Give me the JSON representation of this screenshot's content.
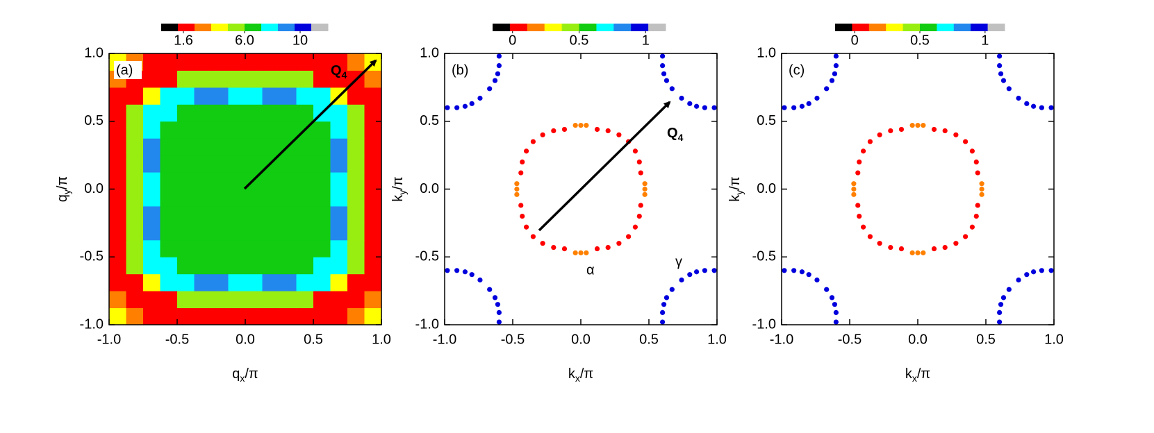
{
  "chart_data": [
    {
      "type": "heatmap",
      "panel_label": "(a)",
      "xlabel": [
        "q",
        "x",
        "/π"
      ],
      "ylabel": [
        "q",
        "y",
        "/π"
      ],
      "xlim": [
        -1,
        1
      ],
      "ylim": [
        -1,
        1
      ],
      "xticks": [
        {
          "value": -1,
          "label": "-1.0"
        },
        -0.5,
        {
          "value": 0,
          "label": "0.0"
        },
        0.5,
        {
          "value": 1,
          "label": "1.0"
        }
      ],
      "yticks": [
        {
          "value": -1,
          "label": "-1.0"
        },
        -0.5,
        {
          "value": 0,
          "label": "0.0"
        },
        0.5,
        {
          "value": 1,
          "label": "1.0"
        }
      ],
      "colors": [
        "#000000",
        "#ff0000",
        "#ff8000",
        "#ffff00",
        "#99ee11",
        "#11cc11",
        "#00ffff",
        "#2288ee",
        "#0000dd",
        "#c0c0c0"
      ],
      "zlim": [
        0,
        12
      ],
      "zticks": [
        1.6,
        {
          "value": 6,
          "label": "6.0"
        },
        10
      ],
      "arrow_label": [
        "Q",
        "4"
      ],
      "x": [
        -0.9375,
        -0.8125,
        -0.6875,
        -0.5625,
        -0.4375,
        -0.3125,
        -0.1875,
        -0.0625,
        0.0625,
        0.1875,
        0.3125,
        0.4375,
        0.5625,
        0.6875,
        0.8125,
        0.9375
      ],
      "y": [
        -0.9375,
        -0.8125,
        -0.6875,
        -0.5625,
        -0.4375,
        -0.3125,
        -0.1875,
        -0.0625,
        0.0625,
        0.1875,
        0.3125,
        0.4375,
        0.5625,
        0.6875,
        0.8125,
        0.9375
      ],
      "z": [
        [
          4.2,
          3.0,
          1.8,
          1.8,
          1.8,
          1.8,
          1.8,
          1.8,
          1.8,
          1.8,
          1.8,
          1.8,
          1.8,
          1.8,
          3.0,
          4.2
        ],
        [
          3.0,
          1.8,
          1.8,
          1.8,
          5.4,
          5.4,
          5.4,
          5.4,
          5.4,
          5.4,
          5.4,
          5.4,
          1.8,
          1.8,
          1.8,
          3.0
        ],
        [
          1.8,
          1.8,
          4.2,
          7.8,
          7.8,
          9,
          9,
          7.8,
          7.8,
          9,
          9,
          7.8,
          7.8,
          4.2,
          1.8,
          1.8
        ],
        [
          1.8,
          5.4,
          7.8,
          7.8,
          6.6,
          6.6,
          6.6,
          6.6,
          6.6,
          6.6,
          6.6,
          6.6,
          7.8,
          7.8,
          5.4,
          1.8
        ],
        [
          1.8,
          5.4,
          7.8,
          6.6,
          6.6,
          6.6,
          6.6,
          6.6,
          6.6,
          6.6,
          6.6,
          6.6,
          6.6,
          7.8,
          5.4,
          1.8
        ],
        [
          1.8,
          5.4,
          9,
          6.6,
          6.6,
          6.6,
          6.6,
          6.6,
          6.6,
          6.6,
          6.6,
          6.6,
          6.6,
          9,
          5.4,
          1.8
        ],
        [
          1.8,
          5.4,
          9,
          6.6,
          6.6,
          6.6,
          6.6,
          6.6,
          6.6,
          6.6,
          6.6,
          6.6,
          6.6,
          9,
          5.4,
          1.8
        ],
        [
          1.8,
          5.4,
          7.8,
          6.6,
          6.6,
          6.6,
          6.6,
          6.6,
          6.6,
          6.6,
          6.6,
          6.6,
          6.6,
          7.8,
          5.4,
          1.8
        ],
        [
          1.8,
          5.4,
          7.8,
          6.6,
          6.6,
          6.6,
          6.6,
          6.6,
          6.6,
          6.6,
          6.6,
          6.6,
          6.6,
          7.8,
          5.4,
          1.8
        ],
        [
          1.8,
          5.4,
          9,
          6.6,
          6.6,
          6.6,
          6.6,
          6.6,
          6.6,
          6.6,
          6.6,
          6.6,
          6.6,
          9,
          5.4,
          1.8
        ],
        [
          1.8,
          5.4,
          9,
          6.6,
          6.6,
          6.6,
          6.6,
          6.6,
          6.6,
          6.6,
          6.6,
          6.6,
          6.6,
          9,
          5.4,
          1.8
        ],
        [
          1.8,
          5.4,
          7.8,
          6.6,
          6.6,
          6.6,
          6.6,
          6.6,
          6.6,
          6.6,
          6.6,
          6.6,
          6.6,
          7.8,
          5.4,
          1.8
        ],
        [
          1.8,
          5.4,
          7.8,
          7.8,
          6.6,
          6.6,
          6.6,
          6.6,
          6.6,
          6.6,
          6.6,
          6.6,
          7.8,
          7.8,
          5.4,
          1.8
        ],
        [
          1.8,
          1.8,
          4.2,
          7.8,
          7.8,
          9,
          9,
          7.8,
          7.8,
          9,
          9,
          7.8,
          7.8,
          4.2,
          1.8,
          1.8
        ],
        [
          3.0,
          1.8,
          1.8,
          1.8,
          5.4,
          5.4,
          5.4,
          5.4,
          5.4,
          5.4,
          5.4,
          5.4,
          1.8,
          1.8,
          1.8,
          3.0
        ],
        [
          4.2,
          3.0,
          1.8,
          1.8,
          1.8,
          1.8,
          1.8,
          1.8,
          1.8,
          1.8,
          1.8,
          1.8,
          1.8,
          1.8,
          3.0,
          4.2
        ]
      ]
    },
    {
      "type": "scatter",
      "panel_label": "(b)",
      "xlabel": [
        "k",
        "x",
        "/π"
      ],
      "ylabel": [
        "k",
        "y",
        "/π"
      ],
      "xlim": [
        -1,
        1
      ],
      "ylim": [
        -1,
        1
      ],
      "xticks": [
        {
          "value": -1,
          "label": "-1.0"
        },
        -0.5,
        {
          "value": 0,
          "label": "0.0"
        },
        0.5,
        {
          "value": 1,
          "label": "1.0"
        }
      ],
      "yticks": [
        {
          "value": -1,
          "label": "-1.0"
        },
        -0.5,
        {
          "value": 0,
          "label": "0.0"
        },
        0.5,
        {
          "value": 1,
          "label": "1.0"
        }
      ],
      "colors": [
        "#000000",
        "#ff0000",
        "#ff8000",
        "#ffff00",
        "#99ee11",
        "#11cc11",
        "#00ffff",
        "#2288ee",
        "#0000dd",
        "#c0c0c0"
      ],
      "zlim": [
        -0.15,
        1.15
      ],
      "zticks": [
        0,
        0.5,
        1
      ],
      "arrow_label": [
        "Q",
        "4"
      ],
      "alpha_label": "α",
      "gamma_label": "γ",
      "x": [
        0.12,
        0.2,
        0.28,
        0.35,
        0.4,
        0.43,
        0.44,
        -0.12,
        -0.2,
        -0.28,
        -0.35,
        -0.4,
        -0.43,
        -0.44,
        -0.12,
        -0.2,
        -0.28,
        -0.35,
        -0.4,
        -0.43,
        -0.44,
        0.12,
        0.2,
        0.28,
        0.35,
        0.4,
        0.43,
        0.44,
        -0.04,
        0,
        0.04,
        -0.04,
        0,
        0.04,
        -0.47,
        -0.47,
        -0.47,
        0.47,
        0.47,
        0.47,
        0.6,
        0.6,
        0.61,
        0.63,
        0.67,
        0.74,
        0.8,
        0.85,
        0.91,
        0.98,
        -0.6,
        -0.6,
        -0.61,
        -0.63,
        -0.67,
        -0.74,
        -0.8,
        -0.85,
        -0.91,
        -0.98,
        -0.6,
        -0.6,
        -0.61,
        -0.63,
        -0.67,
        -0.74,
        -0.8,
        -0.85,
        -0.91,
        -0.98,
        0.6,
        0.6,
        0.61,
        0.63,
        0.67,
        0.74,
        0.8,
        0.85,
        0.91,
        0.98
      ],
      "y": [
        0.44,
        0.43,
        0.4,
        0.35,
        0.28,
        0.2,
        0.12,
        0.44,
        0.43,
        0.4,
        0.35,
        0.28,
        0.2,
        0.12,
        -0.44,
        -0.43,
        -0.4,
        -0.35,
        -0.28,
        -0.2,
        -0.12,
        -0.44,
        -0.43,
        -0.4,
        -0.35,
        -0.28,
        -0.2,
        -0.12,
        0.47,
        0.47,
        0.47,
        -0.47,
        -0.47,
        -0.47,
        -0.04,
        0,
        0.04,
        -0.04,
        0,
        0.04,
        0.98,
        0.91,
        0.85,
        0.8,
        0.74,
        0.67,
        0.63,
        0.61,
        0.6,
        0.6,
        0.98,
        0.91,
        0.85,
        0.8,
        0.74,
        0.67,
        0.63,
        0.61,
        0.6,
        0.6,
        -0.98,
        -0.91,
        -0.85,
        -0.8,
        -0.74,
        -0.67,
        -0.63,
        -0.61,
        -0.6,
        -0.6,
        -0.98,
        -0.91,
        -0.85,
        -0.8,
        -0.74,
        -0.67,
        -0.63,
        -0.61,
        -0.6,
        -0.6
      ],
      "values": [
        0.05,
        0.05,
        0.05,
        0.05,
        0.05,
        0.05,
        0.05,
        0.05,
        0.05,
        0.05,
        0.05,
        0.05,
        0.05,
        0.05,
        0.05,
        0.05,
        0.05,
        0.05,
        0.05,
        0.05,
        0.05,
        0.05,
        0.05,
        0.05,
        0.05,
        0.05,
        0.05,
        0.05,
        0.18,
        0.18,
        0.18,
        0.18,
        0.18,
        0.18,
        0.18,
        0.18,
        0.18,
        0.18,
        0.18,
        0.18,
        0.95,
        0.95,
        0.95,
        0.95,
        0.95,
        0.95,
        0.95,
        0.95,
        0.95,
        0.95,
        0.95,
        0.95,
        0.95,
        0.95,
        0.95,
        0.95,
        0.95,
        0.95,
        0.95,
        0.95,
        0.95,
        0.95,
        0.95,
        0.95,
        0.95,
        0.95,
        0.95,
        0.95,
        0.95,
        0.95,
        0.95,
        0.95,
        0.95,
        0.95,
        0.95,
        0.95,
        0.95,
        0.95,
        0.95,
        0.95
      ]
    },
    {
      "type": "scatter",
      "panel_label": "(c)",
      "xlabel": [
        "k",
        "x",
        "/π"
      ],
      "ylabel": [
        "k",
        "y",
        "/π"
      ],
      "xlim": [
        -1,
        1
      ],
      "ylim": [
        -1,
        1
      ],
      "xticks": [
        {
          "value": -1,
          "label": "-1.0"
        },
        -0.5,
        {
          "value": 0,
          "label": "0.0"
        },
        0.5,
        {
          "value": 1,
          "label": "1.0"
        }
      ],
      "yticks": [
        {
          "value": -1,
          "label": "-1.0"
        },
        -0.5,
        {
          "value": 0,
          "label": "0.0"
        },
        0.5,
        {
          "value": 1,
          "label": "1.0"
        }
      ],
      "colors": [
        "#000000",
        "#ff0000",
        "#ff8000",
        "#ffff00",
        "#99ee11",
        "#11cc11",
        "#00ffff",
        "#2288ee",
        "#0000dd",
        "#c0c0c0"
      ],
      "zlim": [
        -0.15,
        1.15
      ],
      "zticks": [
        0,
        0.5,
        1
      ],
      "x": [
        0.12,
        0.2,
        0.28,
        0.35,
        0.4,
        0.43,
        0.44,
        -0.12,
        -0.2,
        -0.28,
        -0.35,
        -0.4,
        -0.43,
        -0.44,
        -0.12,
        -0.2,
        -0.28,
        -0.35,
        -0.4,
        -0.43,
        -0.44,
        0.12,
        0.2,
        0.28,
        0.35,
        0.4,
        0.43,
        0.44,
        -0.04,
        0,
        0.04,
        -0.04,
        0,
        0.04,
        -0.47,
        -0.47,
        -0.47,
        0.47,
        0.47,
        0.47,
        0.6,
        0.6,
        0.61,
        0.63,
        0.67,
        0.74,
        0.8,
        0.85,
        0.91,
        0.98,
        -0.6,
        -0.6,
        -0.61,
        -0.63,
        -0.67,
        -0.74,
        -0.8,
        -0.85,
        -0.91,
        -0.98,
        -0.6,
        -0.6,
        -0.61,
        -0.63,
        -0.67,
        -0.74,
        -0.8,
        -0.85,
        -0.91,
        -0.98,
        0.6,
        0.6,
        0.61,
        0.63,
        0.67,
        0.74,
        0.8,
        0.85,
        0.91,
        0.98
      ],
      "y": [
        0.44,
        0.43,
        0.4,
        0.35,
        0.28,
        0.2,
        0.12,
        0.44,
        0.43,
        0.4,
        0.35,
        0.28,
        0.2,
        0.12,
        -0.44,
        -0.43,
        -0.4,
        -0.35,
        -0.28,
        -0.2,
        -0.12,
        -0.44,
        -0.43,
        -0.4,
        -0.35,
        -0.28,
        -0.2,
        -0.12,
        0.47,
        0.47,
        0.47,
        -0.47,
        -0.47,
        -0.47,
        -0.04,
        0,
        0.04,
        -0.04,
        0,
        0.04,
        0.98,
        0.91,
        0.85,
        0.8,
        0.74,
        0.67,
        0.63,
        0.61,
        0.6,
        0.6,
        0.98,
        0.91,
        0.85,
        0.8,
        0.74,
        0.67,
        0.63,
        0.61,
        0.6,
        0.6,
        -0.98,
        -0.91,
        -0.85,
        -0.8,
        -0.74,
        -0.67,
        -0.63,
        -0.61,
        -0.6,
        -0.6,
        -0.98,
        -0.91,
        -0.85,
        -0.8,
        -0.74,
        -0.67,
        -0.63,
        -0.61,
        -0.6,
        -0.6
      ],
      "values": [
        0.05,
        0.05,
        0.05,
        0.05,
        0.05,
        0.05,
        0.05,
        0.05,
        0.05,
        0.05,
        0.05,
        0.05,
        0.05,
        0.05,
        0.05,
        0.05,
        0.05,
        0.05,
        0.05,
        0.05,
        0.05,
        0.05,
        0.05,
        0.05,
        0.05,
        0.05,
        0.05,
        0.05,
        0.18,
        0.18,
        0.18,
        0.18,
        0.18,
        0.18,
        0.18,
        0.18,
        0.18,
        0.18,
        0.18,
        0.18,
        0.95,
        0.95,
        0.95,
        0.95,
        0.95,
        0.95,
        0.95,
        0.95,
        0.95,
        0.95,
        0.95,
        0.95,
        0.95,
        0.95,
        0.95,
        0.95,
        0.95,
        0.95,
        0.95,
        0.95,
        0.95,
        0.95,
        0.95,
        0.95,
        0.95,
        0.95,
        0.95,
        0.95,
        0.95,
        0.95,
        0.95,
        0.95,
        0.95,
        0.95,
        0.95,
        0.95,
        0.95,
        0.95,
        0.95,
        0.95
      ]
    }
  ]
}
